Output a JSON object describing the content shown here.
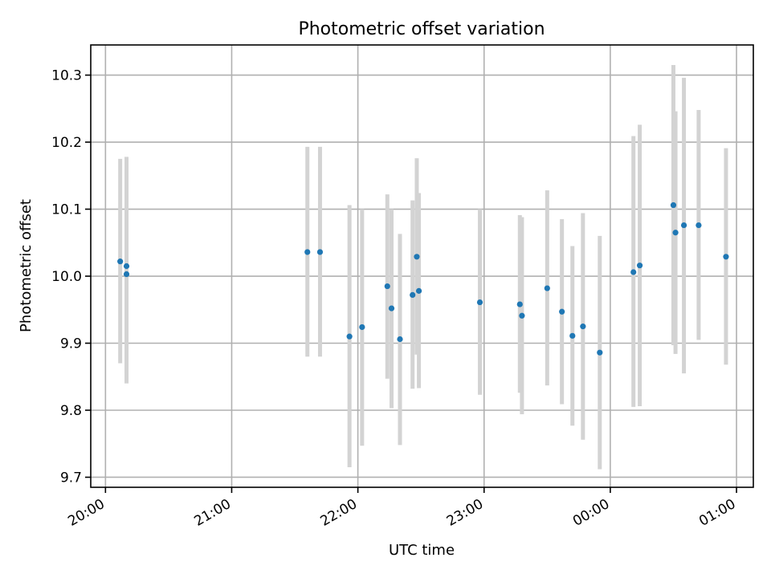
{
  "chart_data": {
    "type": "scatter",
    "title": "Photometric offset variation",
    "xlabel": "UTC time",
    "ylabel": "Photometric offset",
    "x_axis": "time",
    "xlim": [
      "19:53",
      "01:08"
    ],
    "ylim": [
      9.685,
      10.345
    ],
    "xticks": [
      "20:00",
      "21:00",
      "22:00",
      "23:00",
      "00:00",
      "01:00"
    ],
    "yticks": [
      9.7,
      9.8,
      9.9,
      10.0,
      10.1,
      10.2,
      10.3
    ],
    "ytick_labels": [
      "9.7",
      "9.8",
      "9.9",
      "10.0",
      "10.1",
      "10.2",
      "10.3"
    ],
    "grid": true,
    "error_bar_color": "#d3d3d3",
    "marker_color": "#1f77b4",
    "points": [
      {
        "x": "20:07",
        "y": 10.022,
        "low": 9.87,
        "high": 10.175
      },
      {
        "x": "20:10",
        "y": 10.015,
        "low": 9.855,
        "high": 10.178
      },
      {
        "x": "20:10",
        "y": 10.003,
        "low": 9.84,
        "high": 10.16
      },
      {
        "x": "21:36",
        "y": 10.036,
        "low": 9.88,
        "high": 10.193
      },
      {
        "x": "21:42",
        "y": 10.036,
        "low": 9.88,
        "high": 10.193
      },
      {
        "x": "21:56",
        "y": 9.91,
        "low": 9.715,
        "high": 10.106
      },
      {
        "x": "22:02",
        "y": 9.924,
        "low": 9.747,
        "high": 10.1
      },
      {
        "x": "22:14",
        "y": 9.985,
        "low": 9.847,
        "high": 10.122
      },
      {
        "x": "22:16",
        "y": 9.952,
        "low": 9.803,
        "high": 10.1
      },
      {
        "x": "22:20",
        "y": 9.906,
        "low": 9.748,
        "high": 10.063
      },
      {
        "x": "22:26",
        "y": 9.972,
        "low": 9.832,
        "high": 10.113
      },
      {
        "x": "22:28",
        "y": 10.029,
        "low": 9.883,
        "high": 10.176
      },
      {
        "x": "22:29",
        "y": 9.978,
        "low": 9.833,
        "high": 10.124
      },
      {
        "x": "22:58",
        "y": 9.961,
        "low": 9.823,
        "high": 10.1
      },
      {
        "x": "23:17",
        "y": 9.958,
        "low": 9.826,
        "high": 10.091
      },
      {
        "x": "23:18",
        "y": 9.941,
        "low": 9.794,
        "high": 10.088
      },
      {
        "x": "23:30",
        "y": 9.982,
        "low": 9.837,
        "high": 10.128
      },
      {
        "x": "23:37",
        "y": 9.947,
        "low": 9.809,
        "high": 10.085
      },
      {
        "x": "23:42",
        "y": 9.911,
        "low": 9.777,
        "high": 10.045
      },
      {
        "x": "23:47",
        "y": 9.925,
        "low": 9.756,
        "high": 10.094
      },
      {
        "x": "23:55",
        "y": 9.886,
        "low": 9.712,
        "high": 10.06
      },
      {
        "x": "00:11",
        "y": 10.006,
        "low": 9.805,
        "high": 10.209
      },
      {
        "x": "00:14",
        "y": 10.016,
        "low": 9.806,
        "high": 10.226
      },
      {
        "x": "00:30",
        "y": 10.106,
        "low": 9.897,
        "high": 10.315
      },
      {
        "x": "00:31",
        "y": 10.065,
        "low": 9.884,
        "high": 10.246
      },
      {
        "x": "00:35",
        "y": 10.076,
        "low": 9.855,
        "high": 10.296
      },
      {
        "x": "00:42",
        "y": 10.076,
        "low": 9.905,
        "high": 10.248
      },
      {
        "x": "00:55",
        "y": 10.029,
        "low": 9.868,
        "high": 10.191
      }
    ]
  }
}
